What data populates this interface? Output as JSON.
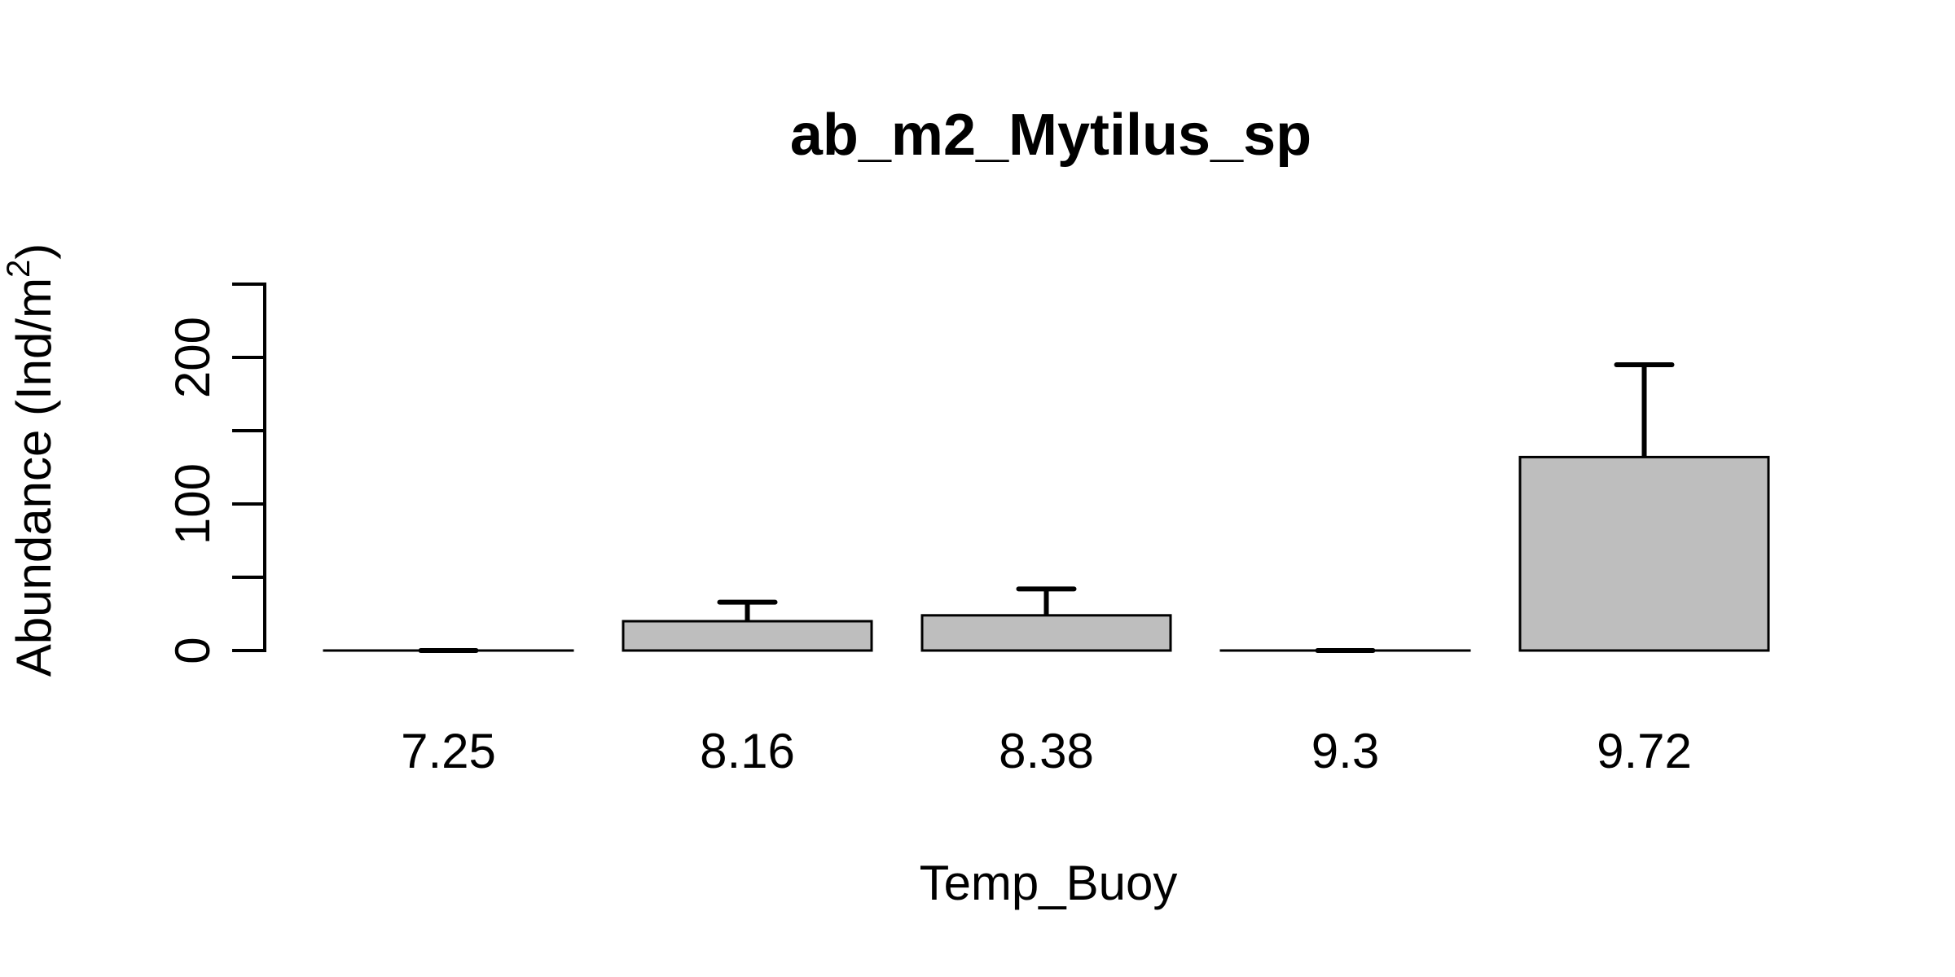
{
  "chart_data": {
    "type": "bar",
    "title": "ab_m2_Mytilus_sp",
    "xlabel": "Temp_Buoy",
    "ylabel_main": "Abundance (Ind/m",
    "ylabel_superscript": "2",
    "ylabel_close": ")",
    "categories": [
      "7.25",
      "8.16",
      "8.38",
      "9.3",
      "9.72"
    ],
    "values": [
      0,
      20,
      24,
      0,
      132
    ],
    "error_upper": [
      0,
      33,
      42,
      0,
      195
    ],
    "ylim": [
      0,
      250
    ],
    "y_ticks": [
      0,
      50,
      100,
      150,
      200,
      250
    ],
    "y_tick_labels": [
      "0",
      "",
      "100",
      "",
      "200",
      ""
    ],
    "bar_fill": "#bebebe",
    "bar_stroke": "#000000",
    "grid": false,
    "legend": "none"
  }
}
